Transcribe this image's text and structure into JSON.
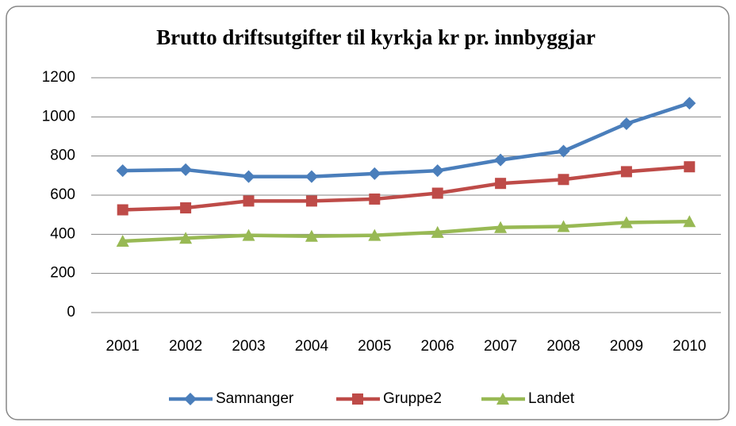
{
  "chart_data": {
    "type": "line",
    "title": "Brutto driftsutgifter til kyrkja kr pr. innbyggjar",
    "categories": [
      "2001",
      "2002",
      "2003",
      "2004",
      "2005",
      "2006",
      "2007",
      "2008",
      "2009",
      "2010"
    ],
    "series": [
      {
        "name": "Samnanger",
        "color": "#4a7ebb",
        "marker": "diamond",
        "values": [
          725,
          730,
          695,
          695,
          710,
          725,
          780,
          825,
          965,
          1070
        ]
      },
      {
        "name": "Gruppe2",
        "color": "#be4b48",
        "marker": "square",
        "values": [
          525,
          535,
          570,
          570,
          580,
          610,
          660,
          680,
          720,
          745
        ]
      },
      {
        "name": "Landet",
        "color": "#98b954",
        "marker": "triangle",
        "values": [
          365,
          380,
          395,
          390,
          395,
          410,
          435,
          440,
          460,
          465
        ]
      }
    ],
    "ylim": [
      0,
      1200
    ],
    "yticks": [
      0,
      200,
      400,
      600,
      800,
      1000,
      1200
    ],
    "grid": true,
    "legend": "bottom"
  }
}
